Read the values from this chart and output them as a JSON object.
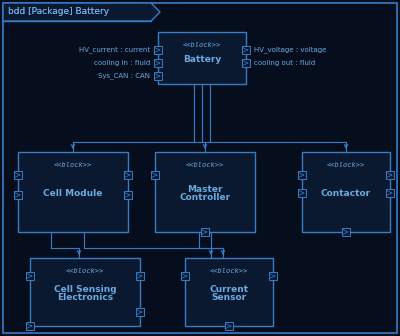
{
  "title": "bdd [Package] Battery",
  "bg_color": "#060e1e",
  "box_edge_color": "#3a7cc4",
  "box_face_color": "#0a1830",
  "text_color": "#6aaae0",
  "line_color": "#3a7cc4",
  "port_labels_left": [
    "HV_current : current",
    "cooling in : fluid",
    "Sys_CAN : CAN"
  ],
  "port_labels_right": [
    "HV_voltage : voltage",
    "cooling out : fluid"
  ]
}
